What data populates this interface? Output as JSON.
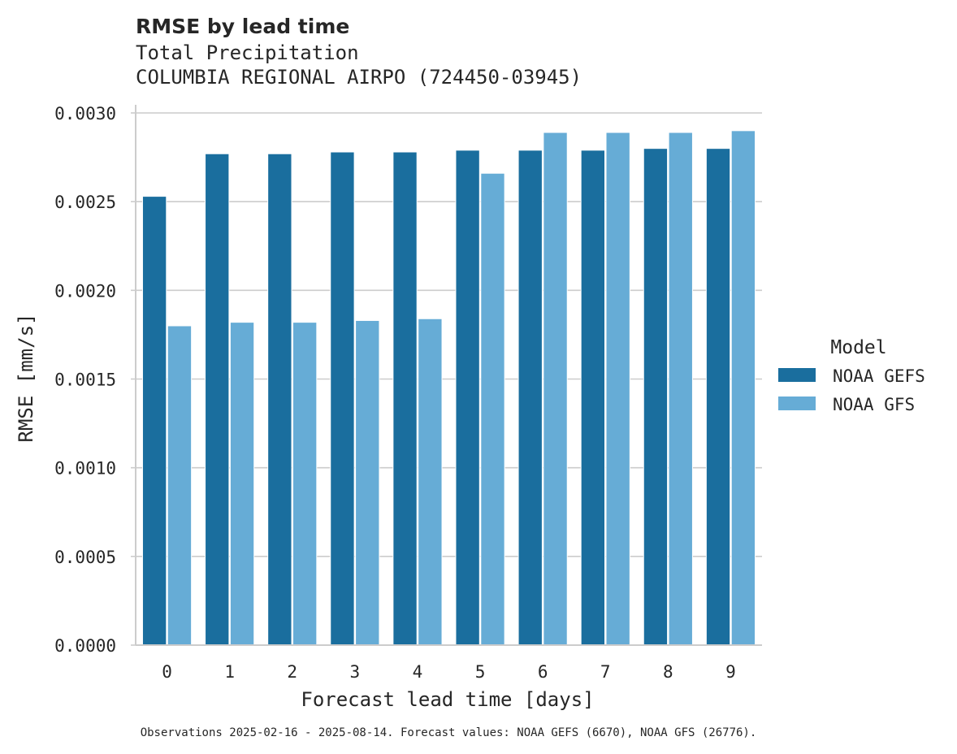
{
  "chart_data": {
    "type": "bar",
    "title": "RMSE by lead time",
    "subtitle_lines": [
      "Total Precipitation",
      "COLUMBIA REGIONAL AIRPO (724450-03945)"
    ],
    "xlabel": "Forecast lead time [days]",
    "ylabel": "RMSE [mm/s]",
    "categories": [
      "0",
      "1",
      "2",
      "3",
      "4",
      "5",
      "6",
      "7",
      "8",
      "9"
    ],
    "ylim": [
      0,
      0.003
    ],
    "yticks": [
      "0.0000",
      "0.0005",
      "0.0010",
      "0.0015",
      "0.0020",
      "0.0025",
      "0.0030"
    ],
    "grid": true,
    "legend": {
      "title": "Model",
      "position": "right"
    },
    "series": [
      {
        "name": "NOAA GEFS",
        "color": "#1a6e9e",
        "values": [
          0.00253,
          0.00277,
          0.00277,
          0.00278,
          0.00278,
          0.00279,
          0.00279,
          0.00279,
          0.0028,
          0.0028
        ]
      },
      {
        "name": "NOAA GFS",
        "color": "#66acd6",
        "values": [
          0.0018,
          0.00182,
          0.00182,
          0.00183,
          0.00184,
          0.00266,
          0.00289,
          0.00289,
          0.00289,
          0.0029
        ]
      }
    ],
    "footnote": "Observations 2025-02-16 - 2025-08-14. Forecast values: NOAA GEFS (6670), NOAA GFS (26776)."
  }
}
